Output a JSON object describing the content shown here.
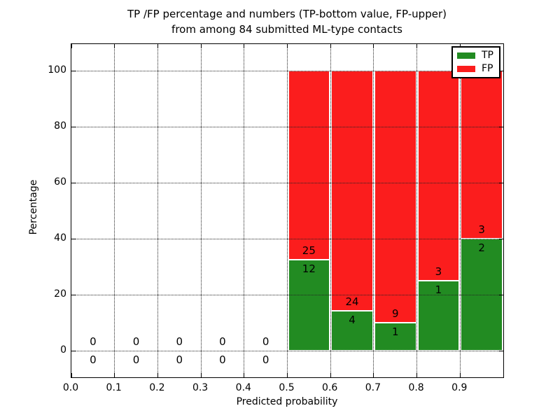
{
  "chart_data": {
    "type": "bar",
    "stacked": true,
    "title_line1": "TP /FP percentage and numbers (TP-bottom value, FP-upper)",
    "title_line2": "from among 84 submitted ML-type contacts",
    "xlabel": "Predicted probability",
    "ylabel": "Percentage",
    "xlim": [
      0.0,
      1.0
    ],
    "ylim": [
      -10,
      110
    ],
    "bar_top_pct": 100,
    "bin_width": 0.1,
    "xtick_values": [
      0.0,
      0.1,
      0.2,
      0.3,
      0.4,
      0.5,
      0.6,
      0.7,
      0.8,
      0.9
    ],
    "xtick_labels": [
      "0.0",
      "0.1",
      "0.2",
      "0.3",
      "0.4",
      "0.5",
      "0.6",
      "0.7",
      "0.8",
      "0.9"
    ],
    "ytick_values": [
      0,
      20,
      40,
      60,
      80,
      100
    ],
    "ytick_labels": [
      "0",
      "20",
      "40",
      "60",
      "80",
      "100"
    ],
    "grid_style": "dotted",
    "legend": [
      {
        "label": "TP",
        "color": "#228B22"
      },
      {
        "label": "FP",
        "color": "#fb1d1d"
      }
    ],
    "colors": {
      "tp": "#228B22",
      "fp": "#fb1d1d",
      "grid": "#222222",
      "axis": "#000000",
      "text": "#000000",
      "background": "#ffffff"
    },
    "bins": [
      {
        "start": 0.0,
        "tp": 0,
        "fp": 0
      },
      {
        "start": 0.1,
        "tp": 0,
        "fp": 0
      },
      {
        "start": 0.2,
        "tp": 0,
        "fp": 0
      },
      {
        "start": 0.3,
        "tp": 0,
        "fp": 0
      },
      {
        "start": 0.4,
        "tp": 0,
        "fp": 0
      },
      {
        "start": 0.5,
        "tp": 12,
        "fp": 25
      },
      {
        "start": 0.6,
        "tp": 4,
        "fp": 24
      },
      {
        "start": 0.7,
        "tp": 1,
        "fp": 9
      },
      {
        "start": 0.8,
        "tp": 1,
        "fp": 3
      },
      {
        "start": 0.9,
        "tp": 2,
        "fp": 3
      }
    ]
  }
}
